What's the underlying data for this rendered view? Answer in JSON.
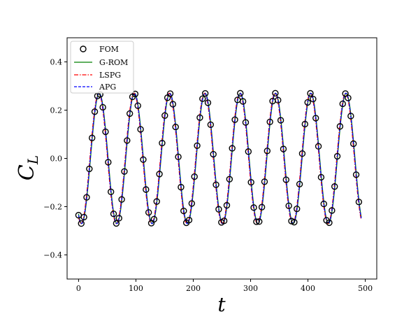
{
  "chart_data": {
    "type": "line",
    "title": "",
    "xlabel": "t",
    "ylabel_main": "C",
    "ylabel_sub": "L",
    "xlim": [
      -20,
      520
    ],
    "ylim": [
      -0.5,
      0.5
    ],
    "xticks": [
      0,
      100,
      200,
      300,
      400,
      500
    ],
    "xtick_labels": [
      "0",
      "100",
      "200",
      "300",
      "400",
      "500"
    ],
    "yticks": [
      -0.4,
      -0.2,
      0.0,
      0.2,
      0.4
    ],
    "ytick_labels": [
      "−0.4",
      "−0.2",
      "0.0",
      "0.2",
      "0.4"
    ],
    "grid": false,
    "legend_position": "top-left",
    "signal": {
      "t_start": 0,
      "t_end": 493,
      "amplitude": 0.27,
      "period": 61.5,
      "phase_t0": 5,
      "fom_sample_step": 4.7
    },
    "series": [
      {
        "name": "FOM",
        "style": "marker",
        "color": "#000000"
      },
      {
        "name": "G-ROM",
        "style": "solid",
        "color": "#008000"
      },
      {
        "name": "LSPG",
        "style": "dashdot",
        "color": "#ff0000"
      },
      {
        "name": "APG",
        "style": "dashed",
        "color": "#0000ff"
      }
    ]
  }
}
